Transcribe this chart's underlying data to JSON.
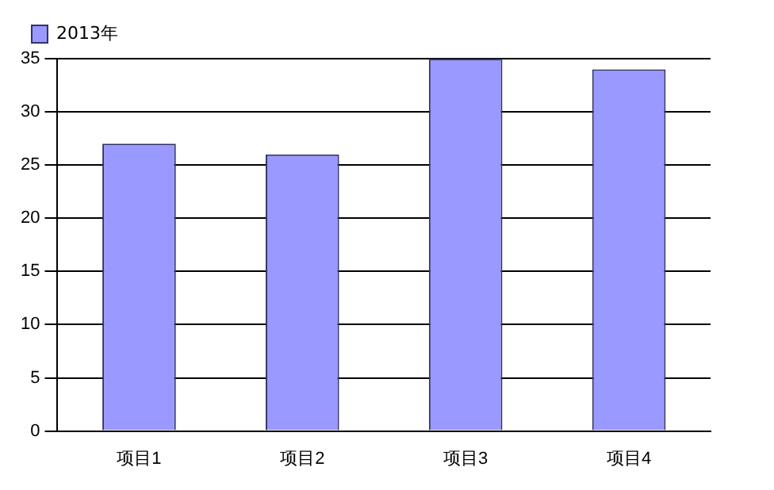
{
  "chart_data": {
    "type": "bar",
    "categories": [
      "项目1",
      "项目2",
      "项目3",
      "项目4"
    ],
    "series": [
      {
        "name": "2013年",
        "color": "#9999ff",
        "values": [
          27,
          26,
          35,
          34
        ]
      }
    ],
    "ylim": [
      0,
      35
    ],
    "yticks": [
      0,
      5,
      10,
      15,
      20,
      25,
      30,
      35
    ],
    "grid": "y",
    "legend": "top left"
  }
}
